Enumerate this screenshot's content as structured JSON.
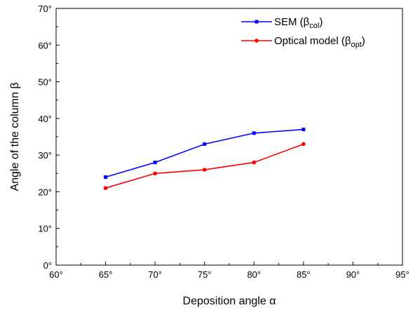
{
  "chart_data": {
    "type": "line",
    "title": "",
    "xlabel": "Deposition angle α",
    "ylabel": "Angle of the column β",
    "xlim": [
      60,
      95
    ],
    "ylim": [
      0,
      70
    ],
    "x_ticks": [
      "60°",
      "65°",
      "70°",
      "75°",
      "80°",
      "85°",
      "90°",
      "95°"
    ],
    "y_ticks": [
      "0°",
      "10°",
      "20°",
      "30°",
      "40°",
      "50°",
      "60°",
      "70°"
    ],
    "x": [
      65,
      70,
      75,
      80,
      85
    ],
    "series": [
      {
        "name": "SEM (βcol)",
        "label_main": "SEM (β",
        "label_sub": "col",
        "label_end": ")",
        "color": "#0000ff",
        "marker": "square",
        "values": [
          24,
          28,
          33,
          36,
          37
        ]
      },
      {
        "name": "Optical model (βopt)",
        "label_main": "Optical model (β",
        "label_sub": "opt",
        "label_end": ")",
        "color": "#ff0000",
        "marker": "circle",
        "values": [
          21,
          25,
          26,
          28,
          33
        ]
      }
    ],
    "legend_position": "top-right",
    "grid": false
  }
}
